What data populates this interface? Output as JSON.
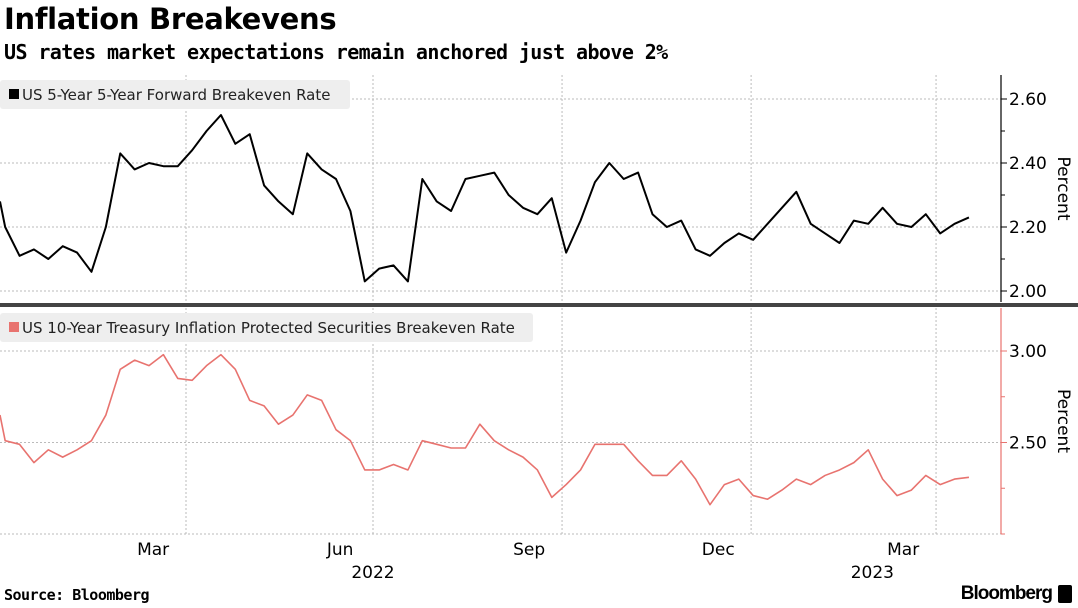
{
  "header": {
    "title": "Inflation Breakevens",
    "subtitle": "US rates market expectations remain anchored just above 2%"
  },
  "footer": {
    "source": "Source: Bloomberg",
    "brand": "Bloomberg"
  },
  "colors": {
    "series1": "#000000",
    "series2": "#e8736f",
    "grid": "#bbbbbb",
    "legend_bg": "#eeeeee",
    "divider": "#444444"
  },
  "chart_data": [
    {
      "type": "line",
      "legend": "US 5-Year 5-Year Forward Breakeven Rate",
      "ylabel": "Percent",
      "ylim": [
        1.97,
        2.68
      ],
      "yticks": [
        "2.60",
        "2.40",
        "2.20",
        "2.00"
      ],
      "ytick_values": [
        2.6,
        2.4,
        2.2,
        2.0
      ],
      "grid": true,
      "legend_placement": "top-left",
      "x": [
        "2021-12-27",
        "2022-01-03",
        "2022-01-10",
        "2022-01-17",
        "2022-01-24",
        "2022-01-31",
        "2022-02-07",
        "2022-02-14",
        "2022-02-21",
        "2022-02-28",
        "2022-03-07",
        "2022-03-14",
        "2022-03-21",
        "2022-03-28",
        "2022-04-04",
        "2022-04-11",
        "2022-04-18",
        "2022-04-25",
        "2022-05-02",
        "2022-05-09",
        "2022-05-16",
        "2022-05-23",
        "2022-05-30",
        "2022-06-06",
        "2022-06-13",
        "2022-06-20",
        "2022-06-27",
        "2022-07-04",
        "2022-07-11",
        "2022-07-18",
        "2022-07-25",
        "2022-08-01",
        "2022-08-08",
        "2022-08-15",
        "2022-08-22",
        "2022-08-29",
        "2022-09-05",
        "2022-09-12",
        "2022-09-19",
        "2022-09-26",
        "2022-10-03",
        "2022-10-10",
        "2022-10-17",
        "2022-10-24",
        "2022-10-31",
        "2022-11-07",
        "2022-11-14",
        "2022-11-21",
        "2022-11-28",
        "2022-12-05",
        "2022-12-12",
        "2022-12-19",
        "2022-12-26",
        "2023-01-02",
        "2023-01-09",
        "2023-01-16",
        "2023-01-23",
        "2023-01-30",
        "2023-02-06",
        "2023-02-13",
        "2023-02-20",
        "2023-02-27",
        "2023-03-06",
        "2023-03-13",
        "2023-03-20",
        "2023-03-27",
        "2023-04-03",
        "2023-04-10",
        "2023-04-17"
      ],
      "values": [
        2.28,
        2.2,
        2.11,
        2.13,
        2.1,
        2.14,
        2.12,
        2.06,
        2.2,
        2.43,
        2.38,
        2.4,
        2.39,
        2.39,
        2.44,
        2.5,
        2.55,
        2.46,
        2.49,
        2.33,
        2.28,
        2.24,
        2.43,
        2.38,
        2.35,
        2.25,
        2.03,
        2.07,
        2.08,
        2.03,
        2.35,
        2.28,
        2.25,
        2.35,
        2.36,
        2.37,
        2.3,
        2.26,
        2.24,
        2.29,
        2.12,
        2.22,
        2.34,
        2.4,
        2.35,
        2.37,
        2.24,
        2.2,
        2.22,
        2.13,
        2.11,
        2.15,
        2.18,
        2.16,
        2.21,
        2.26,
        2.31,
        2.21,
        2.18,
        2.15,
        2.22,
        2.21,
        2.26,
        2.21,
        2.2,
        2.24,
        2.18,
        2.21,
        2.23
      ]
    },
    {
      "type": "line",
      "legend": "US 10-Year Treasury Inflation Protected Securities Breakeven Rate",
      "ylabel": "Percent",
      "ylim": [
        2.0,
        3.24
      ],
      "yticks": [
        "3.00",
        "2.50"
      ],
      "ytick_values": [
        3.0,
        2.5
      ],
      "grid": true,
      "legend_placement": "top-left",
      "x_tick_labels": [
        "Mar",
        "Jun",
        "Sep",
        "Dec",
        "Mar"
      ],
      "x_tick_dates": [
        "2022-03-16",
        "2022-06-15",
        "2022-09-15",
        "2022-12-16",
        "2023-03-16"
      ],
      "x_year_labels": [
        "2022",
        "2023"
      ],
      "x_year_dates": [
        "2022-07-01",
        "2023-03-01"
      ],
      "values": [
        2.65,
        2.51,
        2.49,
        2.39,
        2.46,
        2.42,
        2.46,
        2.51,
        2.65,
        2.9,
        2.95,
        2.92,
        2.98,
        2.85,
        2.84,
        2.92,
        2.98,
        2.9,
        2.73,
        2.7,
        2.6,
        2.65,
        2.76,
        2.73,
        2.57,
        2.51,
        2.35,
        2.35,
        2.38,
        2.35,
        2.51,
        2.49,
        2.47,
        2.47,
        2.6,
        2.51,
        2.46,
        2.42,
        2.35,
        2.2,
        2.27,
        2.35,
        2.49,
        2.49,
        2.49,
        2.4,
        2.32,
        2.32,
        2.4,
        2.3,
        2.16,
        2.27,
        2.3,
        2.21,
        2.19,
        2.24,
        2.3,
        2.27,
        2.32,
        2.35,
        2.39,
        2.46,
        2.3,
        2.21,
        2.24,
        2.32,
        2.27,
        2.3,
        2.31
      ]
    }
  ]
}
